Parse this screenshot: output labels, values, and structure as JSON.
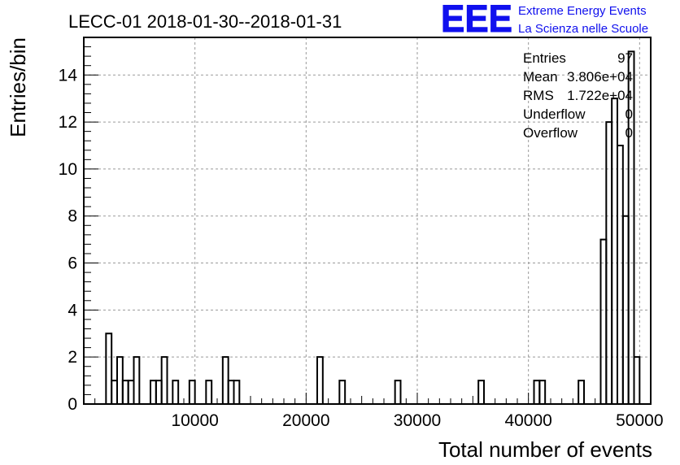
{
  "chart_data": {
    "type": "histogram",
    "title": "LECC-01 2018-01-30--2018-01-31",
    "xlabel": "Total number of events",
    "ylabel": "Entries/bin",
    "xlim": [
      0,
      51000
    ],
    "ylim": [
      0,
      15.6
    ],
    "grid": true,
    "bin_width": 500,
    "x_ticks": [
      10000,
      20000,
      30000,
      40000,
      50000
    ],
    "x_tick_labels": [
      "10000",
      "20000",
      "30000",
      "40000",
      "50000"
    ],
    "y_ticks": [
      0,
      2,
      4,
      6,
      8,
      10,
      12,
      14
    ],
    "y_tick_labels": [
      "0",
      "2",
      "4",
      "6",
      "8",
      "10",
      "12",
      "14"
    ],
    "bins": [
      {
        "x0": 2000,
        "x1": 2500,
        "count": 3
      },
      {
        "x0": 2500,
        "x1": 3000,
        "count": 1
      },
      {
        "x0": 3000,
        "x1": 3500,
        "count": 2
      },
      {
        "x0": 3500,
        "x1": 4000,
        "count": 1
      },
      {
        "x0": 4000,
        "x1": 4500,
        "count": 1
      },
      {
        "x0": 4500,
        "x1": 5000,
        "count": 2
      },
      {
        "x0": 6000,
        "x1": 6500,
        "count": 1
      },
      {
        "x0": 6500,
        "x1": 7000,
        "count": 1
      },
      {
        "x0": 7000,
        "x1": 7500,
        "count": 2
      },
      {
        "x0": 8000,
        "x1": 8500,
        "count": 1
      },
      {
        "x0": 9500,
        "x1": 10000,
        "count": 1
      },
      {
        "x0": 11000,
        "x1": 11500,
        "count": 1
      },
      {
        "x0": 12500,
        "x1": 13000,
        "count": 2
      },
      {
        "x0": 13000,
        "x1": 13500,
        "count": 1
      },
      {
        "x0": 13500,
        "x1": 14000,
        "count": 1
      },
      {
        "x0": 21000,
        "x1": 21500,
        "count": 2
      },
      {
        "x0": 23000,
        "x1": 23500,
        "count": 1
      },
      {
        "x0": 28000,
        "x1": 28500,
        "count": 1
      },
      {
        "x0": 35500,
        "x1": 36000,
        "count": 1
      },
      {
        "x0": 40500,
        "x1": 41000,
        "count": 1
      },
      {
        "x0": 41000,
        "x1": 41500,
        "count": 1
      },
      {
        "x0": 44500,
        "x1": 45000,
        "count": 1
      },
      {
        "x0": 46500,
        "x1": 47000,
        "count": 7
      },
      {
        "x0": 47000,
        "x1": 47500,
        "count": 12
      },
      {
        "x0": 47500,
        "x1": 48000,
        "count": 13
      },
      {
        "x0": 48000,
        "x1": 48500,
        "count": 11
      },
      {
        "x0": 48500,
        "x1": 49000,
        "count": 8
      },
      {
        "x0": 49000,
        "x1": 49500,
        "count": 15
      },
      {
        "x0": 49500,
        "x1": 50000,
        "count": 2
      }
    ],
    "stats": [
      {
        "label": "Entries",
        "value": "97"
      },
      {
        "label": "Mean",
        "value": "3.806e+04"
      },
      {
        "label": "RMS",
        "value": "1.722e+04"
      },
      {
        "label": "Underflow",
        "value": "0"
      },
      {
        "label": "Overflow",
        "value": "0"
      }
    ]
  },
  "logo": {
    "text": "EEE",
    "line1": "Extreme Energy Events",
    "line2": "La Scienza nelle Scuole",
    "color": "#1010ee"
  }
}
